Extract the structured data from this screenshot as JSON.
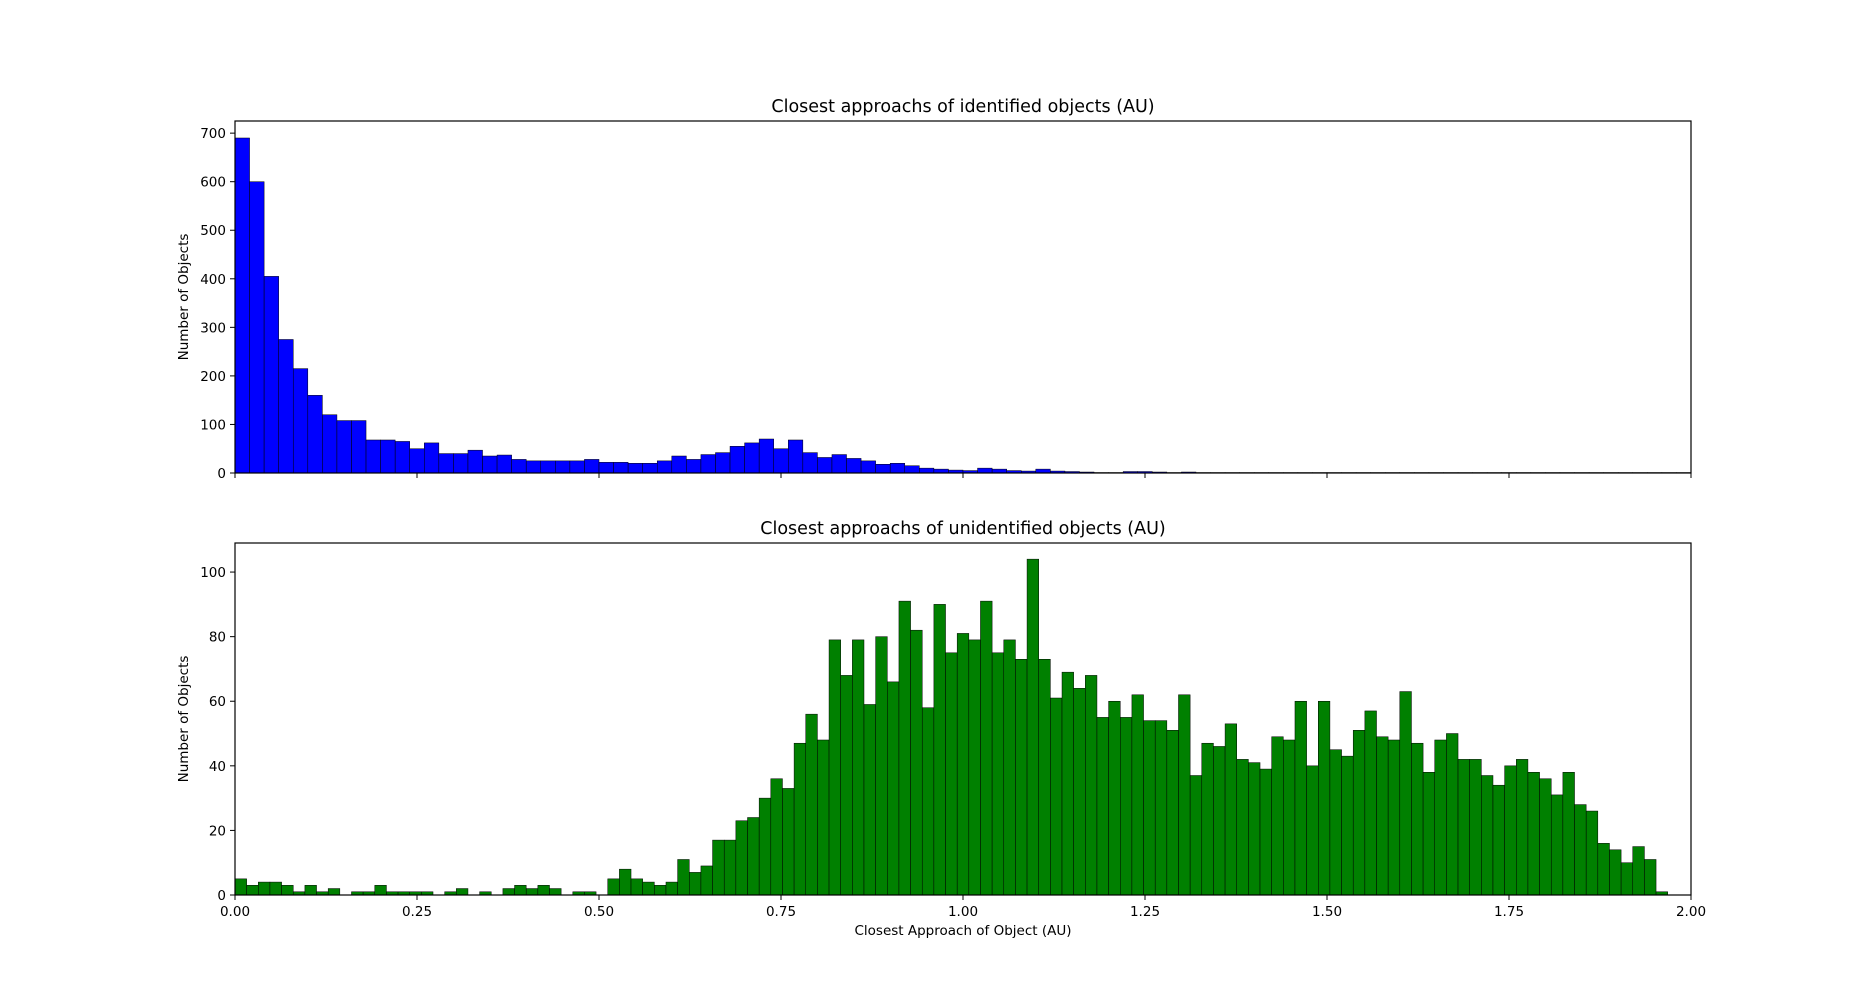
{
  "chart_data": [
    {
      "type": "bar",
      "title": "Closest approachs of identified objects (AU)",
      "xlabel": "",
      "ylabel": "Number of Objects",
      "xlim": [
        0,
        2.0
      ],
      "ylim": [
        0,
        725
      ],
      "bin_width": 0.02,
      "bar_color": "#0000ff",
      "edge_color": "#000000",
      "x_ticks": [
        0.0,
        0.25,
        0.5,
        0.75,
        1.0,
        1.25,
        1.5,
        1.75,
        2.0
      ],
      "x_tick_labels": [
        "",
        "",
        "",
        "",
        "",
        "",
        "",
        "",
        ""
      ],
      "y_ticks": [
        0,
        100,
        200,
        300,
        400,
        500,
        600,
        700
      ],
      "y_tick_labels": [
        "0",
        "100",
        "200",
        "300",
        "400",
        "500",
        "600",
        "700"
      ],
      "grid": false,
      "values": [
        690,
        600,
        405,
        275,
        215,
        160,
        120,
        108,
        108,
        68,
        68,
        65,
        50,
        62,
        40,
        40,
        47,
        35,
        37,
        28,
        25,
        25,
        25,
        25,
        28,
        22,
        22,
        20,
        20,
        25,
        35,
        28,
        38,
        42,
        55,
        62,
        70,
        50,
        68,
        42,
        32,
        38,
        30,
        25,
        18,
        20,
        15,
        10,
        8,
        6,
        5,
        10,
        8,
        5,
        4,
        8,
        4,
        3,
        2,
        1,
        1,
        3,
        3,
        2,
        1,
        2,
        1,
        1,
        1,
        1,
        1,
        1,
        1,
        1,
        1,
        1,
        1,
        1,
        1,
        1,
        1,
        1,
        1,
        1,
        1,
        1,
        1,
        1,
        1,
        1,
        1,
        1,
        1,
        1,
        1,
        1,
        1,
        1,
        1,
        1
      ]
    },
    {
      "type": "bar",
      "title": "Closest approachs of unidentified objects (AU)",
      "xlabel": "Closest Approach of Object (AU)",
      "ylabel": "Number of Objects",
      "xlim": [
        0,
        2.0
      ],
      "ylim": [
        0,
        109
      ],
      "bin_width": 0.016,
      "bar_color": "#008000",
      "edge_color": "#000000",
      "x_ticks": [
        0.0,
        0.25,
        0.5,
        0.75,
        1.0,
        1.25,
        1.5,
        1.75,
        2.0
      ],
      "x_tick_labels": [
        "0.00",
        "0.25",
        "0.50",
        "0.75",
        "1.00",
        "1.25",
        "1.50",
        "1.75",
        "2.00"
      ],
      "y_ticks": [
        0,
        20,
        40,
        60,
        80,
        100
      ],
      "y_tick_labels": [
        "0",
        "20",
        "40",
        "60",
        "80",
        "100"
      ],
      "grid": false,
      "values": [
        5,
        3,
        4,
        4,
        3,
        1,
        3,
        1,
        2,
        0,
        1,
        1,
        3,
        1,
        1,
        1,
        1,
        0,
        1,
        2,
        0,
        1,
        0,
        2,
        3,
        2,
        3,
        2,
        0,
        1,
        1,
        0,
        5,
        8,
        5,
        4,
        3,
        4,
        11,
        7,
        9,
        17,
        17,
        23,
        24,
        30,
        36,
        33,
        47,
        56,
        48,
        79,
        68,
        79,
        59,
        80,
        66,
        91,
        82,
        58,
        90,
        75,
        81,
        79,
        91,
        75,
        79,
        73,
        104,
        73,
        61,
        69,
        64,
        68,
        55,
        60,
        55,
        62,
        54,
        54,
        51,
        62,
        37,
        47,
        46,
        53,
        42,
        41,
        39,
        49,
        48,
        60,
        40,
        60,
        45,
        43,
        51,
        57,
        49,
        48,
        63,
        47,
        38,
        48,
        50,
        42,
        42,
        37,
        34,
        40,
        42,
        38,
        36,
        31,
        38,
        28,
        26,
        16,
        14,
        10,
        15,
        11,
        1,
        0,
        0
      ]
    }
  ]
}
